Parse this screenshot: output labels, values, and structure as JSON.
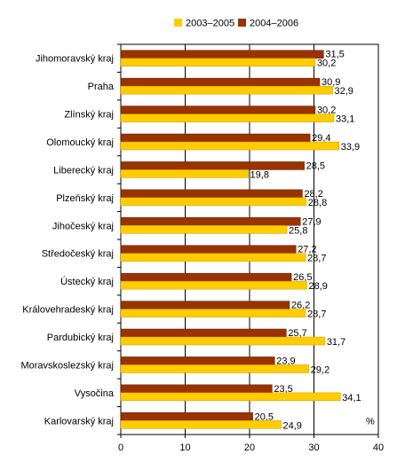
{
  "chart_data": {
    "type": "bar",
    "orientation": "horizontal",
    "categories": [
      "Jihomoravský kraj",
      "Praha",
      "Zlínský kraj",
      "Olomoucký kraj",
      "Liberecký kraj",
      "Plzeňský kraj",
      "Jihočeský kraj",
      "Středočeský kraj",
      "Ústecký kraj",
      "Královehradeský kraj",
      "Pardubický kraj",
      "Moravskoslezský kraj",
      "Vysočina",
      "Karlovarský kraj"
    ],
    "series": [
      {
        "name": "2004–2006",
        "color": "#993300",
        "values": [
          31.5,
          30.9,
          30.2,
          29.4,
          28.5,
          28.2,
          27.9,
          27.2,
          26.5,
          26.2,
          25.7,
          23.9,
          23.5,
          20.5
        ],
        "value_labels": [
          "31,5",
          "30,9",
          "30,2",
          "29,4",
          "28,5",
          "28,2",
          "27,9",
          "27,2",
          "26,5",
          "26,2",
          "25,7",
          "23,9",
          "23,5",
          "20,5"
        ]
      },
      {
        "name": "2003–2005",
        "color": "#FFCC00",
        "values": [
          30.2,
          32.9,
          33.1,
          33.9,
          19.8,
          28.8,
          25.8,
          28.7,
          28.9,
          28.7,
          31.7,
          29.2,
          34.1,
          24.9
        ],
        "value_labels": [
          "30,2",
          "32,9",
          "33,1",
          "33,9",
          "19,8",
          "28,8",
          "25,8",
          "28,7",
          "28,9",
          "28,7",
          "31,7",
          "29,2",
          "34,1",
          "24,9"
        ]
      }
    ],
    "legend": {
      "position": "top",
      "items": [
        {
          "label": "2003–2005",
          "color": "#FFCC00"
        },
        {
          "label": "2004–2006",
          "color": "#993300"
        }
      ]
    },
    "xlim": [
      0,
      40
    ],
    "xticks": [
      0,
      10,
      20,
      30,
      40
    ],
    "unit_label": "%",
    "gridlines": "vertical"
  }
}
